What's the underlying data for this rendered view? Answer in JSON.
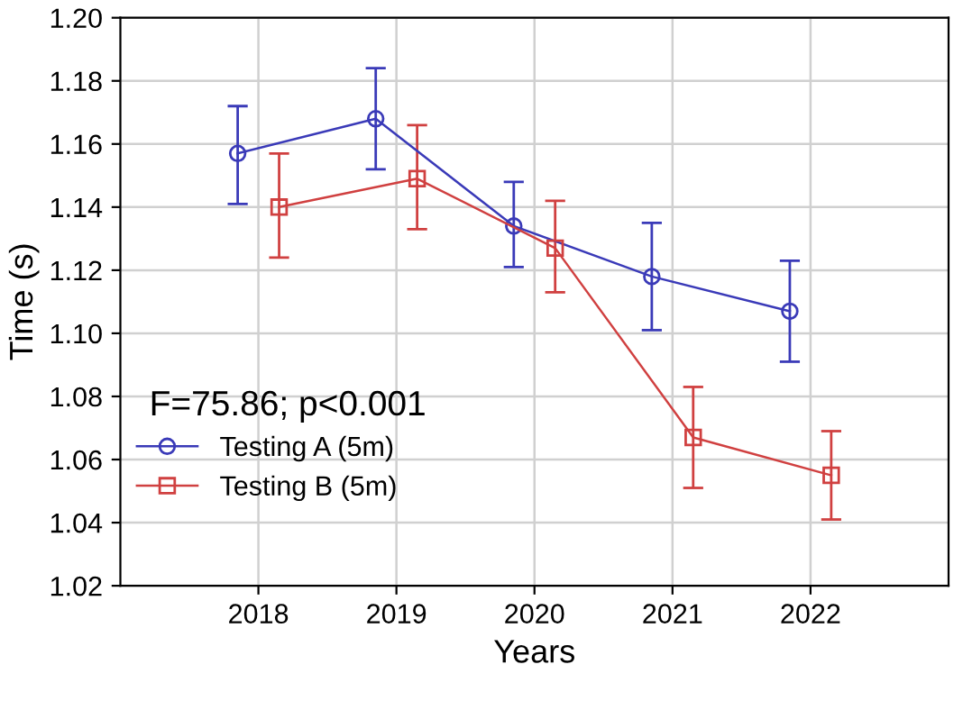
{
  "chart_data": {
    "type": "line",
    "xlabel": "Years",
    "ylabel": "Time (s)",
    "categories": [
      "2018",
      "2019",
      "2020",
      "2021",
      "2022"
    ],
    "ylim": [
      1.02,
      1.2
    ],
    "yticks": [
      {
        "value": 1.02,
        "label": "1.02"
      },
      {
        "value": 1.04,
        "label": "1.04"
      },
      {
        "value": 1.06,
        "label": "1.06"
      },
      {
        "value": 1.08,
        "label": "1.08"
      },
      {
        "value": 1.1,
        "label": "1.10"
      },
      {
        "value": 1.12,
        "label": "1.12"
      },
      {
        "value": 1.14,
        "label": "1.14"
      },
      {
        "value": 1.16,
        "label": "1.16"
      },
      {
        "value": 1.18,
        "label": "1.18"
      },
      {
        "value": 1.2,
        "label": "1.20"
      }
    ],
    "grid": true,
    "legend": "bottom left",
    "line_style": "solid",
    "annotations": [
      "F=75.86; p<0.001"
    ],
    "series": [
      {
        "name": "Testing A (5m)",
        "color": "#3a3ab8",
        "marker": "circle",
        "values": [
          1.157,
          1.168,
          1.134,
          1.118,
          1.107
        ],
        "errors": [
          [
            1.141,
            1.172
          ],
          [
            1.152,
            1.184
          ],
          [
            1.121,
            1.148
          ],
          [
            1.101,
            1.135
          ],
          [
            1.091,
            1.123
          ]
        ]
      },
      {
        "name": "Testing B (5m)",
        "color": "#d04040",
        "marker": "square",
        "values": [
          1.14,
          1.149,
          1.127,
          1.067,
          1.055
        ],
        "errors": [
          [
            1.124,
            1.157
          ],
          [
            1.133,
            1.166
          ],
          [
            1.113,
            1.142
          ],
          [
            1.051,
            1.083
          ],
          [
            1.041,
            1.069
          ]
        ]
      }
    ]
  }
}
